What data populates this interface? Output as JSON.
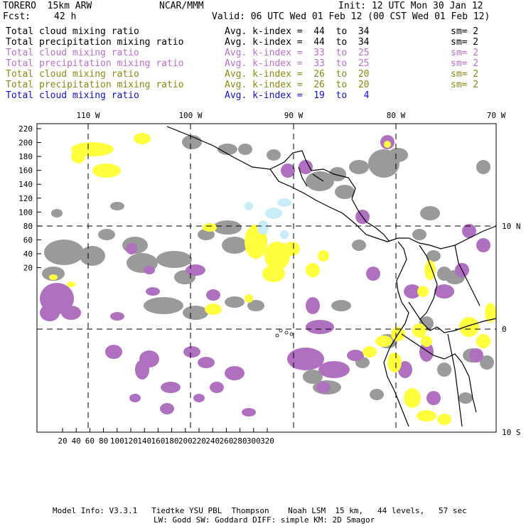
{
  "header": {
    "model": "TORERO  15km ARW",
    "org": "NCAR/MMM",
    "init": "Init: 12 UTC Mon 30 Jan 12",
    "fcst_label": "Fcst:",
    "fcst_value": "42 h",
    "valid": "Valid: 06 UTC Wed 01 Feb 12 (00 CST Wed 01 Feb 12)"
  },
  "legend": [
    {
      "field": "Total cloud mixing ratio",
      "kindex": "Avg. k-index =  44  to  34",
      "sm": "sm= 2",
      "color": "#000000"
    },
    {
      "field": "Total precipitation mixing ratio",
      "kindex": "Avg. k-index =  44  to  34",
      "sm": "sm= 2",
      "color": "#000000"
    },
    {
      "field": "Total cloud mixing ratio",
      "kindex": "Avg. k-index =  33  to  25",
      "sm": "sm= 2",
      "color": "#bb6fcc"
    },
    {
      "field": "Total precipitation mixing ratio",
      "kindex": "Avg. k-index =  33  to  25",
      "sm": "sm= 2",
      "color": "#bb6fcc"
    },
    {
      "field": "Total cloud mixing ratio",
      "kindex": "Avg. k-index =  26  to  20",
      "sm": "sm= 2",
      "color": "#8a8a10"
    },
    {
      "field": "Total precipitation mixing ratio",
      "kindex": "Avg. k-index =  26  to  20",
      "sm": "sm= 2",
      "color": "#8a8a10"
    },
    {
      "field": "Total cloud mixing ratio",
      "kindex": "Avg. k-index =  19  to   4",
      "sm": "",
      "color": "#1010cc"
    }
  ],
  "axes": {
    "top_lon_labels": [
      "110 W",
      "100 W",
      "90 W",
      "80 W",
      "70 W"
    ],
    "right_lat_labels": [
      "10 N",
      "0",
      "10 S"
    ],
    "left_ticks": [
      "220",
      "200",
      "180",
      "160",
      "140",
      "120",
      "100",
      "80",
      "60",
      "40",
      "20"
    ],
    "bottom_ticks": [
      "20",
      "40",
      "60",
      "80",
      "100",
      "120",
      "140",
      "160",
      "180",
      "200",
      "220",
      "240",
      "260",
      "280",
      "300",
      "320"
    ]
  },
  "colors": {
    "gray_cloud": "#9a9a9a",
    "purple_cloud": "#b070c0",
    "yellow_cloud": "#ffff40",
    "cyan_cloud": "#c8ecf8",
    "coast": "#000000"
  },
  "footer": {
    "line1": "Model Info: V3.3.1   Tiedtke YSU PBL  Thompson    Noah LSM  15 km,   44 levels,   57 sec",
    "line2": "LW: Godd SW: Goddard DIFF: simple KM: 2D Smagor"
  }
}
